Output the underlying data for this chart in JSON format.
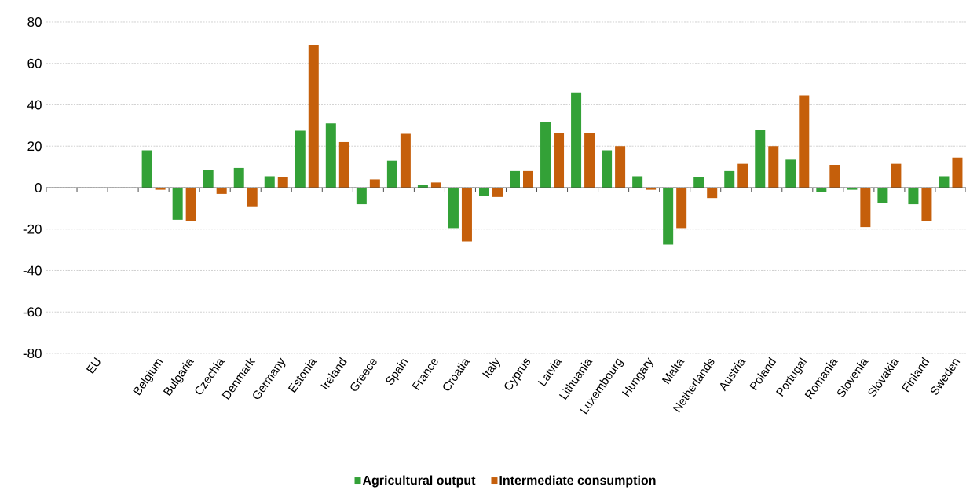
{
  "chart_data": {
    "type": "bar",
    "categories": [
      null,
      "EU",
      null,
      "Belgium",
      "Bulgaria",
      "Czechia",
      "Denmark",
      "Germany",
      "Estonia",
      "Ireland",
      "Greece",
      "Spain",
      "France",
      "Croatia",
      "Italy",
      "Cyprus",
      "Latvia",
      "Lithuania",
      "Luxembourg",
      "Hungary",
      "Malta",
      "Netherlands",
      "Austria",
      "Poland",
      "Portugal",
      "Romania",
      "Slovenia",
      "Slovakia",
      "Finland",
      "Sweden"
    ],
    "series": [
      {
        "name": "Agricultural output",
        "color": "#33a137",
        "values": [
          null,
          null,
          null,
          18,
          -15.5,
          8.5,
          9.5,
          5.5,
          27.5,
          31,
          -8,
          13,
          1.5,
          -19.5,
          -4,
          8,
          31.5,
          46,
          18,
          5.5,
          -27.5,
          5,
          8,
          28,
          13.5,
          -2,
          -1,
          -7.5,
          -8,
          5.5
        ]
      },
      {
        "name": "Intermediate consumption",
        "color": "#c55f0b",
        "values": [
          null,
          null,
          null,
          -1,
          -16,
          -3,
          -9,
          5,
          69,
          22,
          4,
          26,
          2.5,
          -26,
          -4.5,
          8,
          26.5,
          26.5,
          20,
          -1,
          -19.5,
          -5,
          11.5,
          20,
          44.5,
          11,
          -19,
          11.5,
          -16,
          14.5
        ]
      }
    ],
    "ylim": [
      -80,
      80
    ],
    "yticks": [
      -80,
      -60,
      -40,
      -20,
      0,
      20,
      40,
      60,
      80
    ],
    "grid": "y",
    "legend": "bottom"
  }
}
